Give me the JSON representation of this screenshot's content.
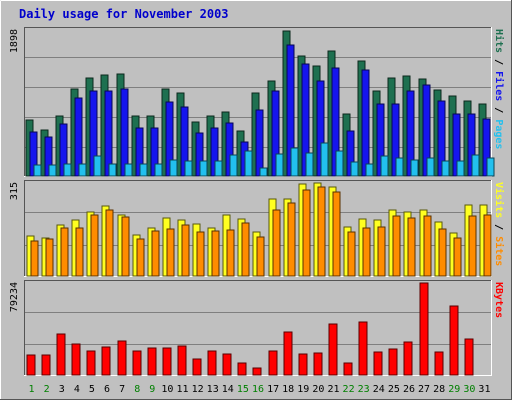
{
  "chart_data": {
    "type": "bar",
    "title": "Daily usage for November 2003",
    "categories": [
      "1",
      "2",
      "3",
      "4",
      "5",
      "6",
      "7",
      "8",
      "9",
      "10",
      "11",
      "12",
      "13",
      "14",
      "15",
      "16",
      "17",
      "18",
      "19",
      "20",
      "21",
      "22",
      "23",
      "24",
      "25",
      "26",
      "27",
      "28",
      "29",
      "30",
      "31"
    ],
    "weekend_days": [
      "1",
      "2",
      "8",
      "9",
      "15",
      "16",
      "22",
      "23",
      "29",
      "30"
    ],
    "colors": {
      "background": "#c0c0c0",
      "title": "#0000cc",
      "weekday": "#000000",
      "weekend": "#008000",
      "hits": "#1e7050",
      "files": "#1515ee",
      "pages": "#22c0ee",
      "visits": "#ffff20",
      "sites": "#ff8c00",
      "kbytes": "#ff0000"
    },
    "panels": [
      {
        "id": "hits",
        "max_label": "1898",
        "ylim": [
          0,
          1898
        ],
        "legend": [
          {
            "text": "Hits",
            "color": "#1e7050"
          },
          {
            "text": " / ",
            "color": "#000000"
          },
          {
            "text": "Files",
            "color": "#1515ee"
          },
          {
            "text": " / ",
            "color": "#000000"
          },
          {
            "text": "Pages",
            "color": "#22c0ee"
          }
        ],
        "series": [
          {
            "name": "Hits",
            "color": "#1e7050",
            "values": [
              730,
              600,
              780,
              1130,
              1280,
              1310,
              1330,
              780,
              780,
              1130,
              1080,
              700,
              780,
              830,
              580,
              1080,
              1240,
              1880,
              1560,
              1430,
              1620,
              800,
              1500,
              1100,
              1280,
              1300,
              1260,
              1120,
              1040,
              980,
              930
            ]
          },
          {
            "name": "Files",
            "color": "#1515ee",
            "values": [
              570,
              510,
              670,
              1020,
              1110,
              1100,
              1130,
              620,
              630,
              960,
              900,
              560,
              630,
              690,
              440,
              860,
              1100,
              1700,
              1450,
              1230,
              1400,
              590,
              1380,
              940,
              940,
              1100,
              1180,
              970,
              800,
              800,
              740
            ]
          },
          {
            "name": "Pages",
            "color": "#22c0ee",
            "values": [
              140,
              140,
              150,
              160,
              260,
              160,
              160,
              150,
              150,
              210,
              200,
              190,
              190,
              270,
              330,
              110,
              280,
              360,
              300,
              430,
              320,
              180,
              160,
              260,
              230,
              210,
              230,
              200,
              190,
              270,
              240
            ]
          }
        ]
      },
      {
        "id": "visits",
        "max_label": "315",
        "ylim": [
          0,
          315
        ],
        "legend": [
          {
            "text": "Visits",
            "color": "#ffff20"
          },
          {
            "text": " / ",
            "color": "#000000"
          },
          {
            "text": "Sites",
            "color": "#ff8c00"
          }
        ],
        "series": [
          {
            "name": "Visits",
            "color": "#ffff20",
            "values": [
              137,
              130,
              172,
              190,
              218,
              236,
              206,
              140,
              162,
              195,
              188,
              177,
              163,
              206,
              192,
              149,
              262,
              262,
              313,
              315,
              302,
              165,
              193,
              188,
              223,
              218,
              225,
              182,
              146,
              240,
              240
            ]
          },
          {
            "name": "Sites",
            "color": "#ff8c00",
            "values": [
              120,
              125,
              164,
              162,
              208,
              222,
              200,
              124,
              154,
              160,
              173,
              150,
              154,
              155,
              181,
              132,
              223,
              247,
              292,
              301,
              286,
              148,
              161,
              166,
              203,
              196,
              204,
              159,
              128,
              203,
              207
            ]
          }
        ]
      },
      {
        "id": "kbytes",
        "max_label": "79234",
        "ylim": [
          0,
          79234
        ],
        "legend": [
          {
            "text": "KBytes",
            "color": "#ff0000"
          }
        ],
        "series": [
          {
            "name": "KBytes",
            "color": "#ff0000",
            "values": [
              17000,
              17000,
              35000,
              27000,
              21000,
              24000,
              29000,
              21000,
              23000,
              23000,
              25000,
              14000,
              21000,
              18000,
              10000,
              6000,
              21000,
              37000,
              18000,
              19000,
              44000,
              10000,
              46000,
              20000,
              22000,
              28000,
              79234,
              20000,
              59000,
              31000,
              0
            ]
          }
        ]
      }
    ]
  }
}
